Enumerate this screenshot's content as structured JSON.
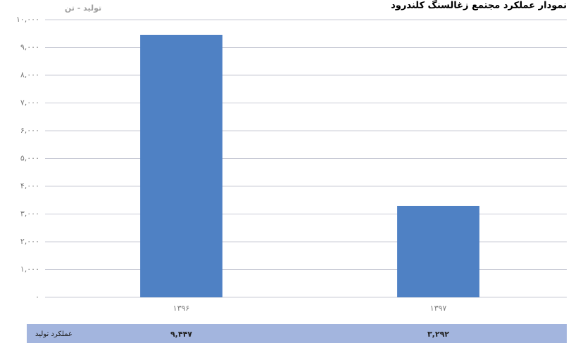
{
  "chart_data": {
    "type": "bar",
    "title": "نمودار عملکرد مجتمع زغالسنگ کلندرود",
    "y_label": "تولید - تن",
    "categories": [
      "۱۳۹۶",
      "۱۳۹۷"
    ],
    "series": [
      {
        "name": "عملکرد تولید",
        "color": "#4f81c4",
        "values": [
          9447,
          3292
        ],
        "value_labels": [
          "۹,۴۴۷",
          "۳,۲۹۲"
        ]
      }
    ],
    "ylim": [
      0,
      10000
    ],
    "yticks": [
      {
        "value": 0,
        "label": "۰"
      },
      {
        "value": 1000,
        "label": "۱,۰۰۰"
      },
      {
        "value": 2000,
        "label": "۲,۰۰۰"
      },
      {
        "value": 3000,
        "label": "۳,۰۰۰"
      },
      {
        "value": 4000,
        "label": "۴,۰۰۰"
      },
      {
        "value": 5000,
        "label": "۵,۰۰۰"
      },
      {
        "value": 6000,
        "label": "۶,۰۰۰"
      },
      {
        "value": 7000,
        "label": "۷,۰۰۰"
      },
      {
        "value": 8000,
        "label": "۸,۰۰۰"
      },
      {
        "value": 9000,
        "label": "۹,۰۰۰"
      },
      {
        "value": 10000,
        "label": "۱۰,۰۰۰"
      }
    ],
    "grid": true
  }
}
